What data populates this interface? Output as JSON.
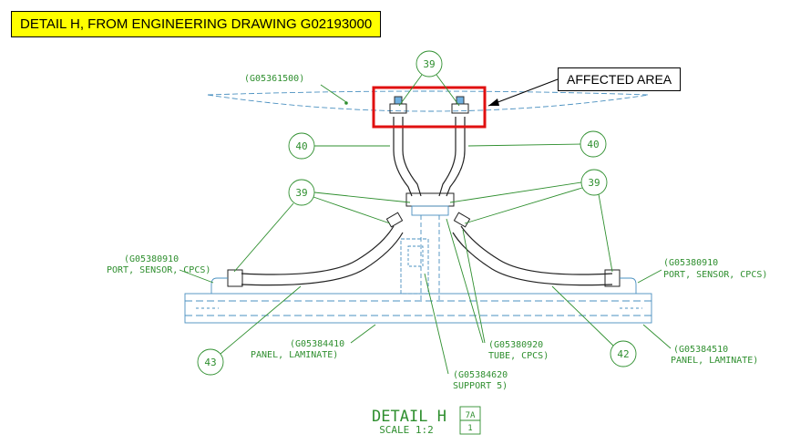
{
  "header": {
    "title": "DETAIL H, FROM ENGINEERING DRAWING G02193000"
  },
  "callout": {
    "affected_label": "AFFECTED AREA"
  },
  "colors": {
    "header_bg": "#ffff00",
    "highlight_red": "#e01010",
    "drawing_green": "#2f8f2f",
    "drawing_blue": "#4a90c0"
  },
  "drawing": {
    "balloons": {
      "b39_top": "39",
      "b40_left": "40",
      "b40_right": "40",
      "b39_left": "39",
      "b39_right": "39",
      "b43": "43",
      "b42": "42"
    },
    "labels": {
      "top_part": "(G05361500)",
      "port_left_1": "(G05380910",
      "port_left_2": "PORT, SENSOR, CPCS)",
      "port_right_1": "(G05380910",
      "port_right_2": "PORT, SENSOR, CPCS)",
      "panel_left_1": "(G05384410",
      "panel_left_2": "PANEL, LAMINATE)",
      "tube_1": "(G05380920",
      "tube_2": "TUBE, CPCS)",
      "support_1": "(G05384620",
      "support_2": "SUPPORT 5)",
      "panel_right_1": "(G05384510",
      "panel_right_2": "PANEL, LAMINATE)"
    },
    "detail": {
      "title": "DETAIL H",
      "scale": "SCALE 1:2",
      "sheet_top": "7A",
      "sheet_bottom": "1"
    }
  }
}
